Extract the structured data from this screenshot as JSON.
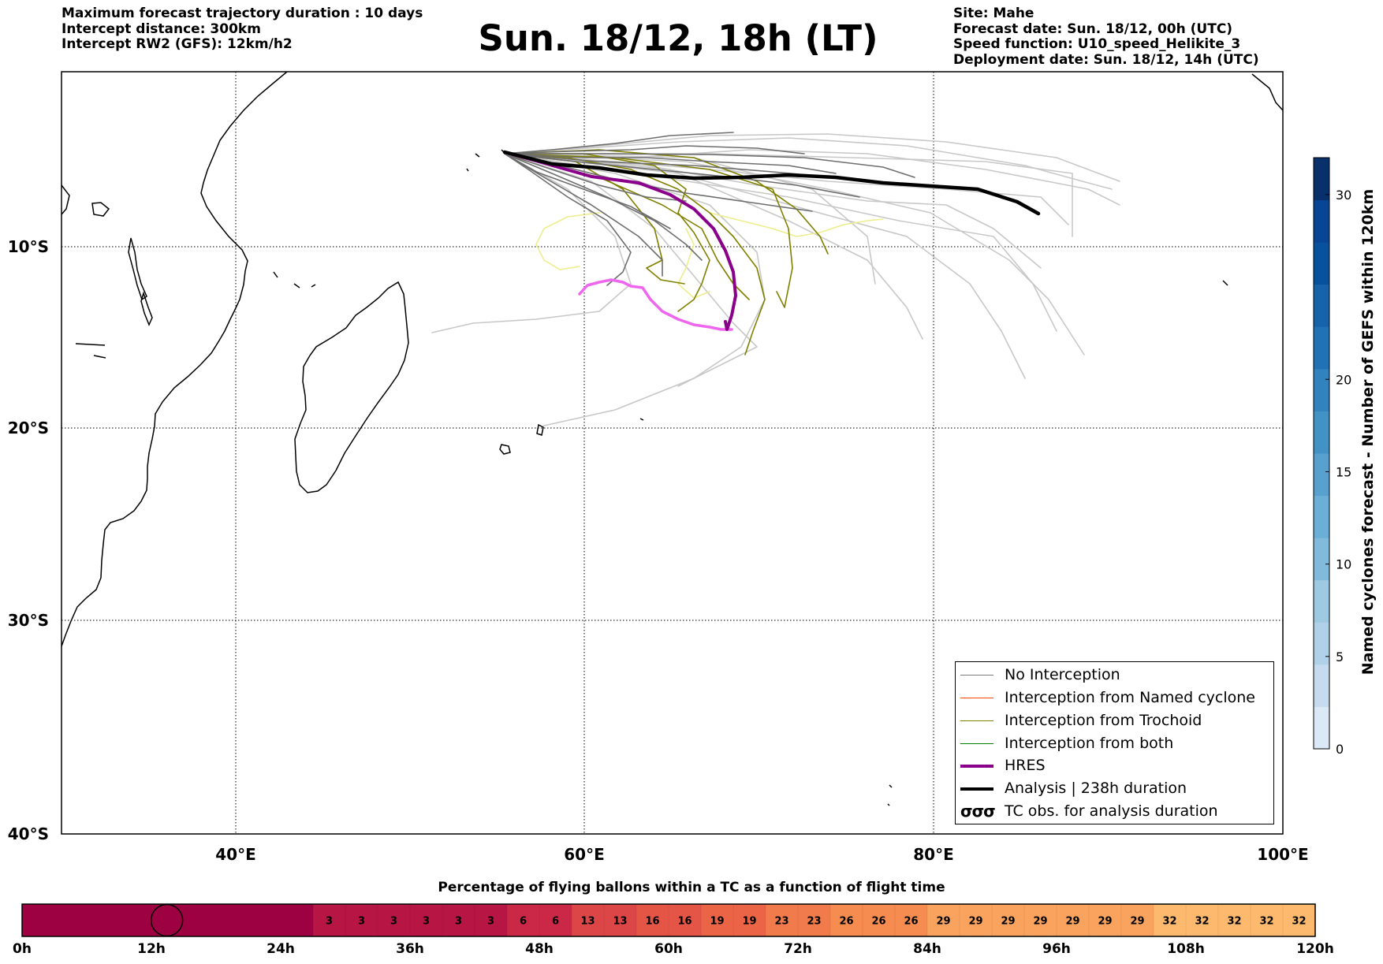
{
  "header_left": [
    "Maximum forecast trajectory duration : 10 days",
    "Intercept distance: 300km",
    "Intercept RW2 (GFS):  12km/h2"
  ],
  "title": "Sun. 18/12, 18h (LT)",
  "header_right": [
    "Site: Mahe",
    "Forecast date: Sun. 18/12, 00h (UTC)",
    "Speed function: U10_speed_Helikite_3",
    "Deployment date: Sun. 18/12, 14h (UTC)"
  ],
  "map": {
    "lon_ticks": [
      "40°E",
      "60°E",
      "80°E",
      "100°E"
    ],
    "lat_ticks": [
      "10°S",
      "20°S",
      "30°S",
      "40°S"
    ],
    "grid": "dotted"
  },
  "legend": {
    "items": [
      {
        "label": "No Interception",
        "color": "#7a7a7a",
        "style": "thin"
      },
      {
        "label": "Interception from Named cyclone",
        "color": "#ff4500",
        "style": "thin"
      },
      {
        "label": "Interception from Trochoid",
        "color": "#808000",
        "style": "thin"
      },
      {
        "label": "Interception from both",
        "color": "#008000",
        "style": "thin"
      },
      {
        "label": "HRES",
        "color": "#8b008b",
        "style": "thick"
      },
      {
        "label": "Analysis | 238h duration",
        "color": "#000000",
        "style": "thick"
      },
      {
        "label": "TC obs. for analysis duration",
        "color": "#000000",
        "style": "cyclone-symbols",
        "symbol": "σσσ"
      }
    ]
  },
  "colorbar": {
    "label": "Named cyclones forecast - Number of GEFS within 120km",
    "ticks": [
      0,
      5,
      10,
      15,
      20,
      30
    ],
    "range": [
      0,
      32
    ],
    "colors": [
      "#dbe9f6",
      "#c6dbef",
      "#b0d1e8",
      "#9ecae1",
      "#82badb",
      "#6baed6",
      "#58a1cf",
      "#4292c6",
      "#3182bd",
      "#2171b5",
      "#1763aa",
      "#08519c",
      "#084594",
      "#08306b"
    ]
  },
  "flight_time_bar": {
    "title": "Percentage of flying ballons within a TC as a function of flight time",
    "hour_labels": [
      "0h",
      "12h",
      "24h",
      "36h",
      "48h",
      "60h",
      "72h",
      "84h",
      "96h",
      "108h",
      "120h"
    ],
    "step_hours": 3,
    "cells": [
      null,
      null,
      null,
      null,
      null,
      null,
      null,
      null,
      null,
      3,
      3,
      3,
      3,
      3,
      3,
      6,
      6,
      13,
      13,
      16,
      16,
      19,
      19,
      23,
      23,
      26,
      26,
      26,
      29,
      29,
      29,
      29,
      29,
      29,
      29,
      32,
      32,
      32,
      32,
      32
    ],
    "marker_hour": 13
  }
}
